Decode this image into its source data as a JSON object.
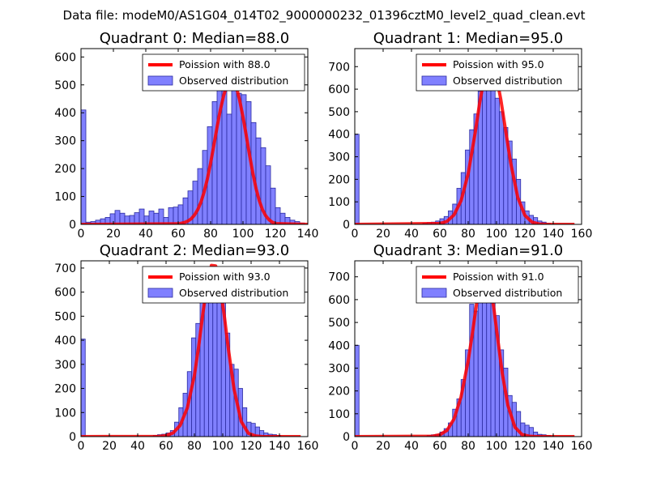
{
  "figure": {
    "suptitle": "Data file: modeM0/AS1G04_014T02_9000000232_01396cztM0_level2_quad_clean.evt"
  },
  "colors": {
    "hist_fill": "#8080ff",
    "hist_edge": "#2a2aa0",
    "poisson_line": "#ff0000"
  },
  "chart_data": [
    {
      "type": "bar",
      "title": "Quadrant 0: Median=88.0",
      "median": 88.0,
      "legend": {
        "poisson": "Poission with 88.0",
        "observed": "Observed distribution",
        "placement": "top-right"
      },
      "xlim": [
        0,
        140
      ],
      "ylim": [
        0,
        630
      ],
      "xticks": [
        0,
        20,
        40,
        60,
        80,
        100,
        120,
        140
      ],
      "yticks": [
        0,
        100,
        200,
        300,
        400,
        500,
        600
      ],
      "bin_width": 3,
      "bins": [
        0,
        3,
        6,
        9,
        12,
        15,
        18,
        21,
        24,
        27,
        30,
        33,
        36,
        39,
        42,
        45,
        48,
        51,
        54,
        57,
        60,
        63,
        66,
        69,
        72,
        75,
        78,
        81,
        84,
        87,
        90,
        93,
        96,
        99,
        102,
        105,
        108,
        111,
        114,
        117,
        120,
        123,
        126,
        129,
        132,
        135
      ],
      "values": [
        410,
        8,
        10,
        15,
        20,
        25,
        38,
        50,
        40,
        30,
        32,
        42,
        55,
        30,
        48,
        40,
        55,
        25,
        60,
        62,
        70,
        95,
        120,
        155,
        200,
        265,
        350,
        440,
        500,
        515,
        395,
        590,
        470,
        465,
        440,
        365,
        310,
        275,
        210,
        130,
        60,
        40,
        25,
        15,
        10,
        5
      ],
      "poisson": {
        "x": [
          0,
          60,
          62,
          64,
          66,
          68,
          70,
          72,
          74,
          76,
          78,
          80,
          82,
          84,
          86,
          88,
          90,
          92,
          94,
          96,
          98,
          100,
          102,
          104,
          106,
          108,
          110,
          112,
          114,
          116,
          118,
          120,
          140
        ],
        "y": [
          0,
          2,
          4,
          7,
          12,
          20,
          33,
          52,
          79,
          116,
          163,
          220,
          283,
          349,
          410,
          460,
          500,
          520,
          516,
          491,
          443,
          385,
          319,
          250,
          186,
          130,
          86,
          53,
          31,
          17,
          8,
          3,
          0
        ]
      }
    },
    {
      "type": "bar",
      "title": "Quadrant 1: Median=95.0",
      "median": 95.0,
      "legend": {
        "poisson": "Poission with 95.0",
        "observed": "Observed distribution",
        "placement": "top-right"
      },
      "xlim": [
        0,
        160
      ],
      "ylim": [
        0,
        780
      ],
      "xticks": [
        0,
        20,
        40,
        60,
        80,
        100,
        120,
        140,
        160
      ],
      "yticks": [
        0,
        100,
        200,
        300,
        400,
        500,
        600,
        700
      ],
      "bin_width": 3,
      "bins": [
        0,
        48,
        51,
        54,
        57,
        60,
        63,
        66,
        69,
        72,
        75,
        78,
        81,
        84,
        87,
        90,
        93,
        96,
        99,
        102,
        105,
        108,
        111,
        114,
        117,
        120,
        123,
        126,
        129,
        132,
        135
      ],
      "values": [
        400,
        5,
        8,
        10,
        15,
        25,
        35,
        60,
        90,
        160,
        230,
        330,
        420,
        490,
        590,
        620,
        650,
        660,
        560,
        500,
        430,
        370,
        290,
        200,
        100,
        60,
        40,
        30,
        15,
        10,
        5
      ],
      "poisson": {
        "x": [
          0,
          60,
          65,
          70,
          75,
          80,
          85,
          88,
          91,
          94,
          97,
          100,
          103,
          106,
          110,
          115,
          120,
          125,
          130,
          135,
          155
        ],
        "y": [
          0,
          4,
          13,
          42,
          105,
          225,
          409,
          535,
          640,
          700,
          705,
          653,
          555,
          434,
          272,
          119,
          40,
          10,
          2,
          0,
          0
        ]
      }
    },
    {
      "type": "bar",
      "title": "Quadrant 2: Median=93.0",
      "median": 93.0,
      "legend": {
        "poisson": "Poission with 93.0",
        "observed": "Observed distribution",
        "placement": "top-right"
      },
      "xlim": [
        0,
        160
      ],
      "ylim": [
        0,
        730
      ],
      "xticks": [
        0,
        20,
        40,
        60,
        80,
        100,
        120,
        140,
        160
      ],
      "yticks": [
        0,
        100,
        200,
        300,
        400,
        500,
        600,
        700
      ],
      "bin_width": 3,
      "bins": [
        0,
        51,
        54,
        57,
        60,
        63,
        66,
        69,
        72,
        75,
        78,
        81,
        84,
        87,
        90,
        93,
        96,
        99,
        102,
        105,
        108,
        111,
        114,
        117,
        120,
        123,
        126,
        129,
        132,
        135,
        138
      ],
      "values": [
        405,
        5,
        8,
        10,
        15,
        25,
        60,
        120,
        180,
        270,
        410,
        470,
        560,
        620,
        650,
        700,
        660,
        560,
        430,
        300,
        280,
        200,
        120,
        60,
        55,
        40,
        25,
        15,
        10,
        8,
        5
      ],
      "poisson": {
        "x": [
          0,
          55,
          60,
          65,
          70,
          75,
          80,
          83,
          86,
          89,
          92,
          95,
          98,
          101,
          104,
          108,
          113,
          118,
          123,
          128,
          133,
          155
        ],
        "y": [
          0,
          1,
          4,
          15,
          47,
          119,
          254,
          374,
          512,
          635,
          711,
          709,
          630,
          506,
          362,
          196,
          63,
          14,
          3,
          0,
          0,
          0
        ]
      }
    },
    {
      "type": "bar",
      "title": "Quadrant 3: Median=91.0",
      "median": 91.0,
      "legend": {
        "poisson": "Poission with 91.0",
        "observed": "Observed distribution",
        "placement": "top-right"
      },
      "xlim": [
        0,
        160
      ],
      "ylim": [
        0,
        770
      ],
      "xticks": [
        0,
        20,
        40,
        60,
        80,
        100,
        120,
        140,
        160
      ],
      "yticks": [
        0,
        100,
        200,
        300,
        400,
        500,
        600,
        700
      ],
      "bin_width": 3,
      "bins": [
        0,
        51,
        54,
        57,
        60,
        63,
        66,
        69,
        72,
        75,
        78,
        81,
        84,
        87,
        90,
        93,
        96,
        99,
        102,
        105,
        108,
        111,
        114,
        117,
        120,
        123,
        126,
        129,
        132,
        135
      ],
      "values": [
        400,
        5,
        8,
        10,
        20,
        35,
        60,
        120,
        165,
        250,
        380,
        580,
        550,
        640,
        700,
        710,
        640,
        530,
        380,
        300,
        180,
        150,
        110,
        60,
        50,
        40,
        20,
        10,
        8,
        5
      ],
      "poisson": {
        "x": [
          0,
          55,
          60,
          65,
          70,
          75,
          80,
          83,
          86,
          89,
          92,
          95,
          98,
          101,
          104,
          108,
          113,
          118,
          123,
          128,
          133,
          155
        ],
        "y": [
          0,
          2,
          8,
          27,
          77,
          175,
          332,
          453,
          586,
          689,
          723,
          679,
          567,
          421,
          279,
          137,
          41,
          9,
          2,
          0,
          0,
          0
        ]
      }
    }
  ]
}
